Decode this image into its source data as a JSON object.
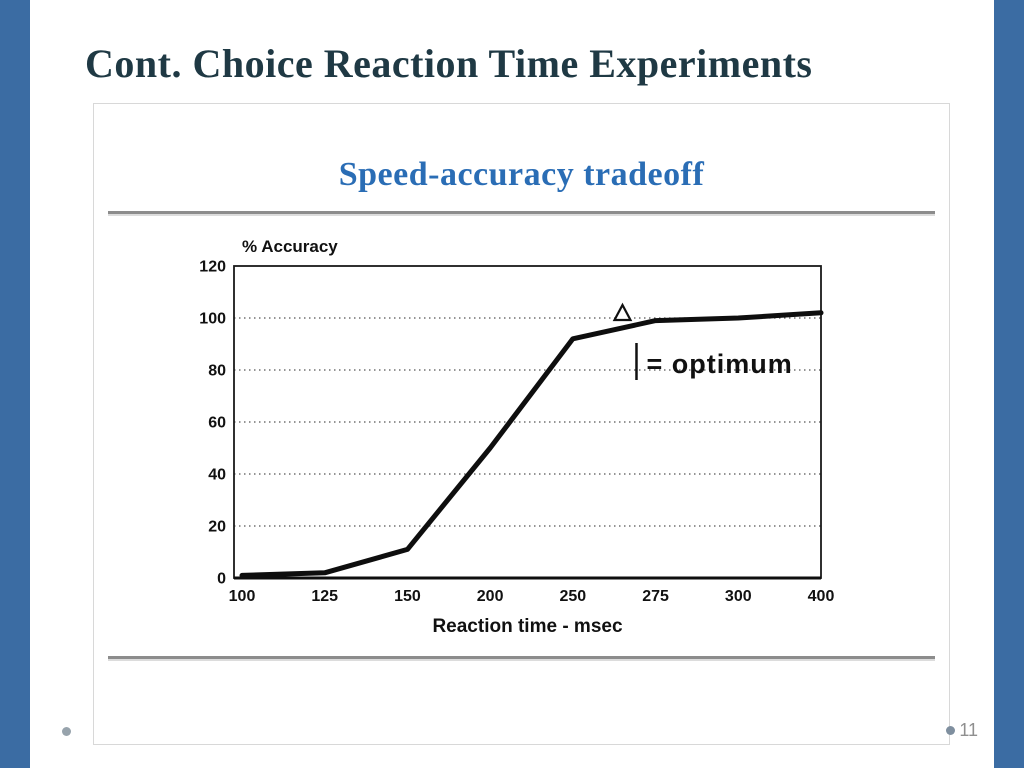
{
  "slide": {
    "title": "Cont. Choice Reaction Time Experiments",
    "page_number": "11"
  },
  "figure": {
    "heading": "Speed-accuracy tradeoff"
  },
  "colors": {
    "background_blue": "#3b6ca3",
    "heading_blue": "#2a6db5",
    "title_dark": "#1f3944",
    "rule_gray": "#8c8c8c",
    "line_black": "#0e0e0e"
  },
  "chart_data": {
    "type": "line",
    "title": "Speed-accuracy tradeoff",
    "xlabel": "Reaction time - msec",
    "ylabel": "% Accuracy",
    "x_ticks": [
      100,
      125,
      150,
      200,
      250,
      275,
      300,
      400
    ],
    "x_tick_labels": [
      "100",
      "125",
      "150",
      "200",
      "250",
      "275",
      "300",
      "400"
    ],
    "y_ticks": [
      0,
      20,
      40,
      60,
      80,
      100,
      120
    ],
    "ylim": [
      0,
      120
    ],
    "grid": "dotted horizontal lines at each y tick, solid box border",
    "x_axis_note": "tick spacing is uniform (categorical) despite non-uniform msec values",
    "series": [
      {
        "name": "% accuracy vs reaction time",
        "values_xy": [
          [
            100,
            1
          ],
          [
            125,
            2
          ],
          [
            150,
            11
          ],
          [
            200,
            50
          ],
          [
            250,
            92
          ],
          [
            275,
            99
          ],
          [
            300,
            100
          ],
          [
            400,
            102
          ]
        ]
      }
    ],
    "annotation": {
      "label": "= optimum",
      "marker": "open triangle on curve",
      "at_xy": [
        265,
        100
      ]
    }
  }
}
